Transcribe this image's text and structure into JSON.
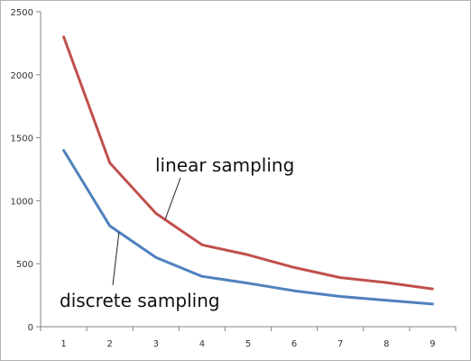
{
  "chart_data": {
    "type": "line",
    "title": "",
    "xlabel": "",
    "ylabel": "",
    "x": [
      1,
      2,
      3,
      4,
      5,
      6,
      7,
      8,
      9
    ],
    "ylim": [
      0,
      2500
    ],
    "yticks": [
      "0",
      "500",
      "1000",
      "1500",
      "2000",
      "2500"
    ],
    "grid": false,
    "legend": "none",
    "series": [
      {
        "values": [
          2300,
          1300,
          900,
          650,
          570,
          470,
          390,
          350,
          300
        ],
        "color": "#c0504d"
      },
      {
        "values": [
          1400,
          800,
          550,
          400,
          345,
          285,
          240,
          210,
          180
        ],
        "color": "#4f81bd"
      }
    ],
    "annotations": [
      {
        "text": "linear sampling",
        "series_index": 0,
        "x": 3.2
      },
      {
        "text": "discrete sampling",
        "series_index": 1,
        "x": 2.2
      }
    ]
  }
}
